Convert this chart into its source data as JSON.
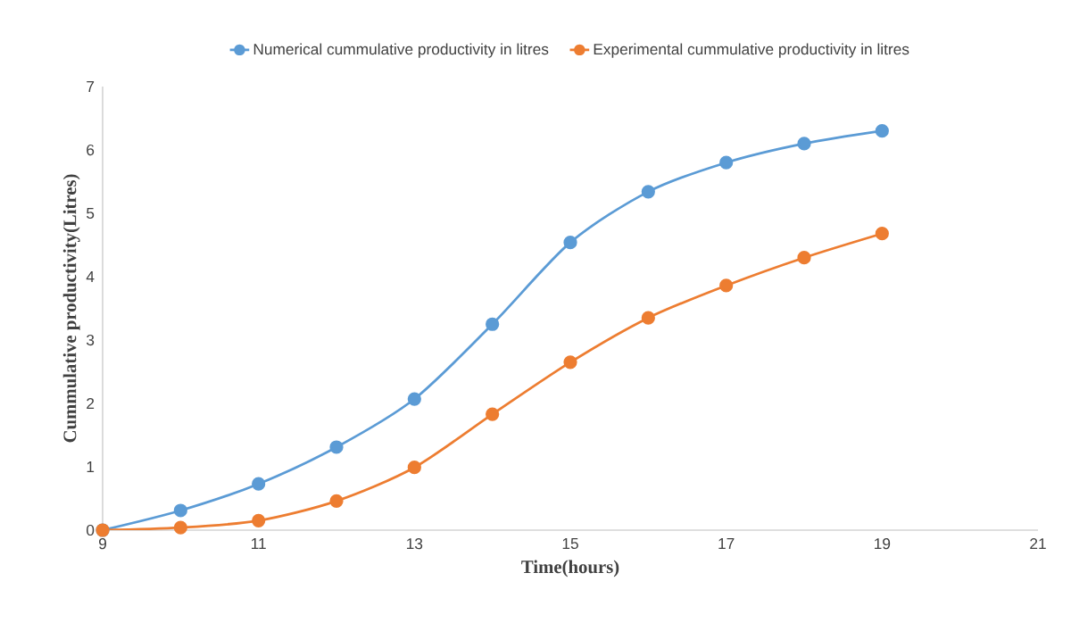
{
  "chart_data": {
    "type": "line",
    "xlabel": "Time(hours)",
    "ylabel": "Cummulative productivity(Litres)",
    "x": [
      9,
      10,
      11,
      12,
      13,
      14,
      15,
      16,
      17,
      18,
      19
    ],
    "xlim": [
      9,
      21
    ],
    "xticks": [
      9,
      11,
      13,
      15,
      17,
      19,
      21
    ],
    "ylim": [
      0,
      7
    ],
    "yticks": [
      0,
      1,
      2,
      3,
      4,
      5,
      6,
      7
    ],
    "legend": "top",
    "marker": "circle",
    "series": [
      {
        "name": "Numerical cummulative productivity in litres",
        "color": "#5b9bd5",
        "values": [
          0,
          0.31,
          0.73,
          1.31,
          2.07,
          3.25,
          4.54,
          5.34,
          5.8,
          6.1,
          6.3
        ]
      },
      {
        "name": "Experimental cummulative productivity in litres",
        "color": "#ed7d31",
        "values": [
          0,
          0.04,
          0.15,
          0.46,
          0.99,
          1.83,
          2.65,
          3.35,
          3.86,
          4.3,
          4.68
        ]
      }
    ]
  }
}
